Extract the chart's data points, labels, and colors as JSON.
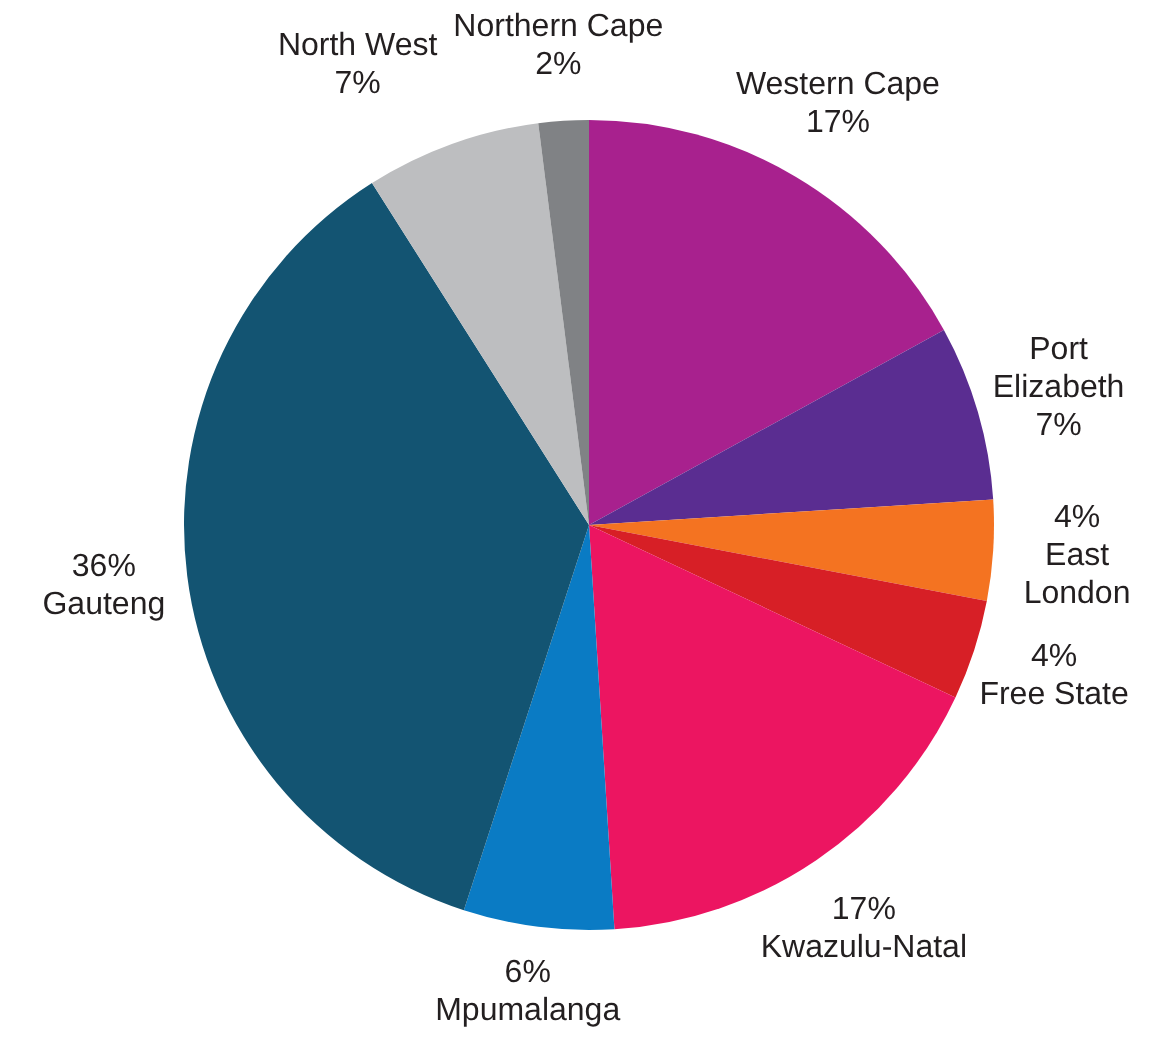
{
  "chart_data": {
    "type": "pie",
    "categories": [
      "Western Cape",
      "Port Elizabeth",
      "East London",
      "Free State",
      "Kwazulu-Natal",
      "Mpumalanga",
      "Gauteng",
      "North West",
      "Northern Cape"
    ],
    "values": [
      17,
      7,
      4,
      4,
      17,
      6,
      36,
      7,
      2
    ],
    "colors": [
      "#a8218e",
      "#5a2d91",
      "#f47321",
      "#d71f26",
      "#ec1561",
      "#0a7bc4",
      "#135472",
      "#bdbec0",
      "#808285"
    ],
    "value_labels": [
      "17%",
      "7%",
      "4%",
      "4%",
      "17%",
      "6%",
      "36%",
      "7%",
      "2%"
    ],
    "legend": false
  }
}
